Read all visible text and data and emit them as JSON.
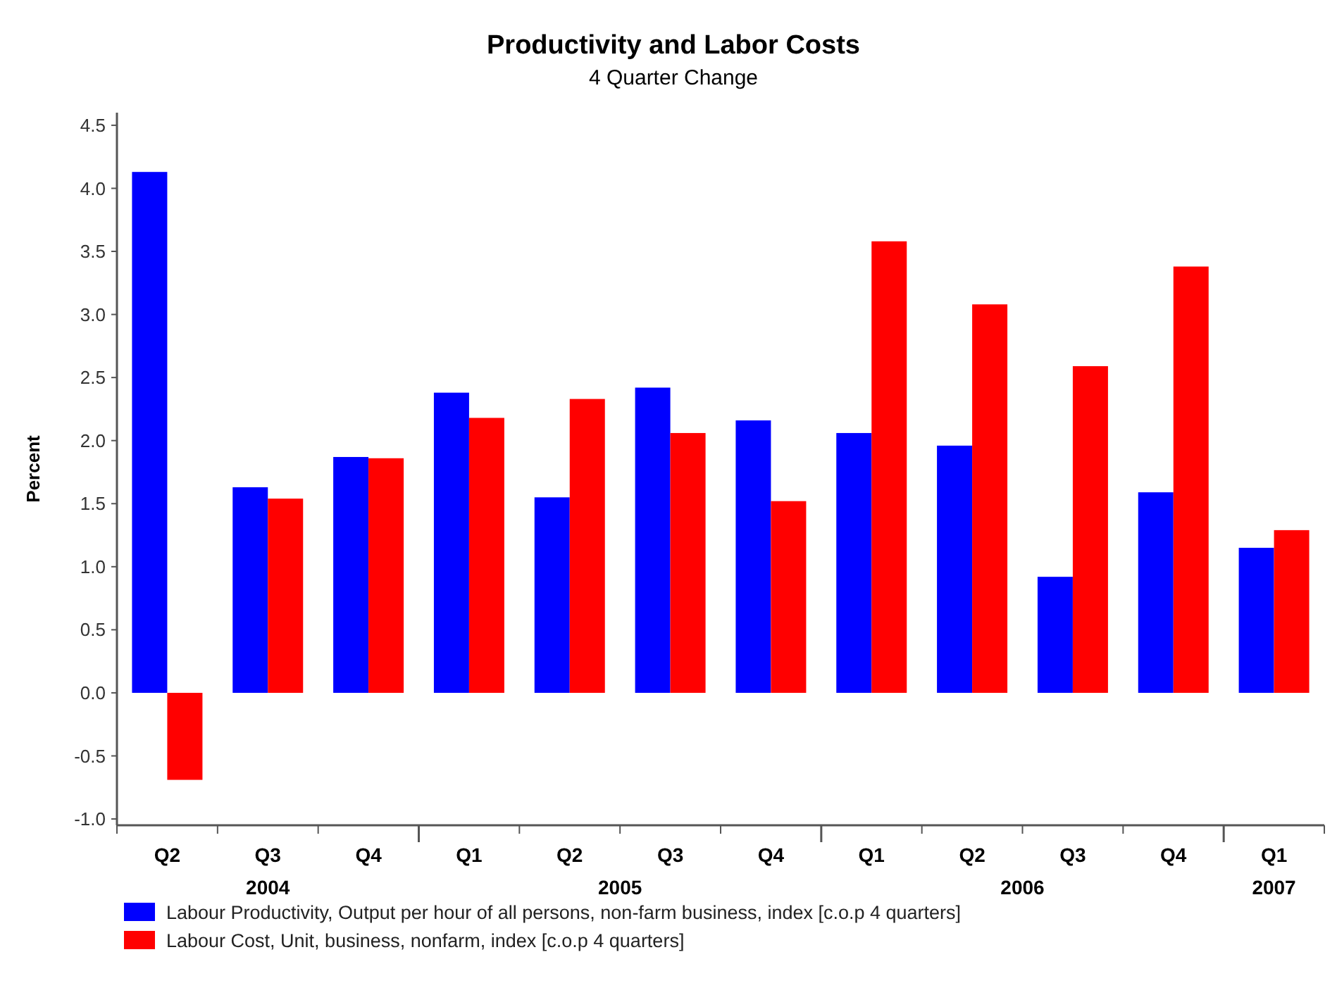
{
  "chart_data": {
    "type": "bar",
    "title": "Productivity and Labor Costs",
    "subtitle": "4 Quarter Change",
    "ylabel": "Percent",
    "categories": [
      "Q2",
      "Q3",
      "Q4",
      "Q1",
      "Q2",
      "Q3",
      "Q4",
      "Q1",
      "Q2",
      "Q3",
      "Q4",
      "Q1"
    ],
    "annotations": [
      "2004",
      "2005",
      "2006",
      "2007"
    ],
    "series": [
      {
        "name": "Labour Productivity, Output per hour of all persons, non-farm business, index [c.o.p 4 quarters]",
        "color": "#0000ff",
        "values": [
          4.13,
          1.63,
          1.87,
          2.38,
          1.55,
          2.42,
          2.16,
          2.06,
          1.96,
          0.92,
          1.59,
          1.15
        ]
      },
      {
        "name": "Labour Cost, Unit, business, nonfarm, index [c.o.p 4 quarters]",
        "color": "#ff0000",
        "values": [
          -0.69,
          1.54,
          1.86,
          2.18,
          2.33,
          2.06,
          1.52,
          3.58,
          3.08,
          2.59,
          3.38,
          1.29
        ]
      }
    ],
    "ylim": [
      -1.05,
      4.6
    ],
    "yticks": [
      {
        "value": -1,
        "label": "-1.0"
      },
      {
        "value": -0.5,
        "label": "-0.5"
      },
      {
        "value": 0,
        "label": "0.0"
      },
      {
        "value": 0.5,
        "label": "0.5"
      },
      {
        "value": 1,
        "label": "1.0"
      },
      {
        "value": 1.5,
        "label": "1.5"
      },
      {
        "value": 2,
        "label": "2.0"
      },
      {
        "value": 2.5,
        "label": "2.5"
      },
      {
        "value": 3,
        "label": "3.0"
      },
      {
        "value": 3.5,
        "label": "3.5"
      },
      {
        "value": 4,
        "label": "4.0"
      },
      {
        "value": 4.5,
        "label": "4.5"
      }
    ],
    "grid": false,
    "legend": "bottom"
  }
}
